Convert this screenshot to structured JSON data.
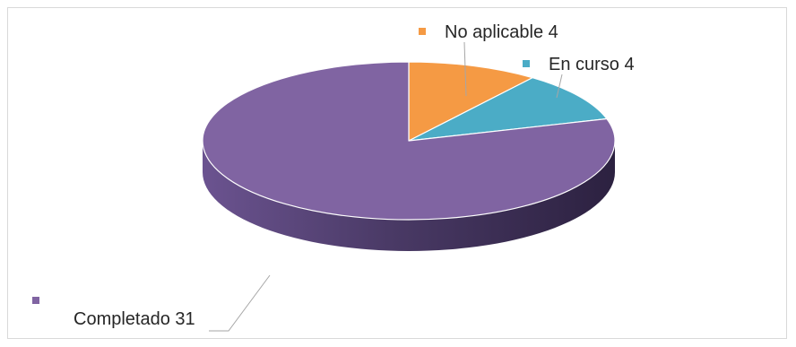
{
  "chart_data": {
    "type": "pie",
    "style": "3d",
    "title": "",
    "categories": [
      "No aplicable",
      "En curso",
      "Completado"
    ],
    "values": [
      4,
      4,
      31
    ],
    "colors": [
      "#f59a44",
      "#4bacc6",
      "#8064a2"
    ],
    "data_labels": [
      "No aplicable 4",
      "En curso 4",
      "Completado 31"
    ],
    "legend": "none",
    "grid": false
  }
}
